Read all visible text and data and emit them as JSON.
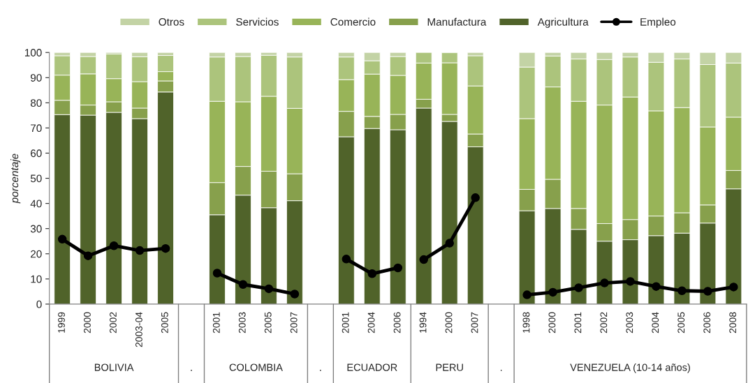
{
  "chart_data": {
    "type": "bar",
    "stacked": true,
    "ylabel": "porcentaje",
    "categories": [
      "1999",
      "2000",
      "2002",
      "2003-04",
      "2005",
      null,
      "2001",
      "2003",
      "2005",
      "2007",
      null,
      "2001",
      "2004",
      "2006",
      "1994",
      "2000",
      "2007",
      null,
      "1998",
      "2000",
      "2001",
      "2002",
      "2003",
      "2004",
      "2005",
      "2006",
      "2008"
    ],
    "series": [
      {
        "name": "Agricultura",
        "color": "#50632a",
        "values": [
          75.3,
          75.1,
          76.2,
          73.7,
          84.3,
          null,
          35.5,
          43.3,
          38.3,
          41.1,
          null,
          66.5,
          69.8,
          69.3,
          77.9,
          72.6,
          62.5,
          null,
          37.1,
          38.0,
          29.7,
          25.0,
          25.6,
          27.2,
          28.2,
          32.2,
          45.8
        ]
      },
      {
        "name": "Manufactura",
        "color": "#87a04c",
        "values": [
          5.7,
          4.0,
          4.2,
          4.2,
          4.4,
          null,
          12.8,
          11.4,
          14.5,
          10.7,
          null,
          10.1,
          4.8,
          6.1,
          3.5,
          2.8,
          5.1,
          null,
          8.5,
          11.6,
          8.3,
          7.0,
          8.0,
          7.8,
          8.1,
          7.2,
          7.3
        ]
      },
      {
        "name": "Comercio",
        "color": "#98b458",
        "values": [
          10.0,
          12.4,
          9.2,
          10.5,
          3.7,
          null,
          32.3,
          25.7,
          29.8,
          26.0,
          null,
          12.6,
          16.8,
          15.5,
          14.4,
          20.5,
          19.1,
          null,
          28.1,
          36.7,
          42.6,
          47.1,
          48.7,
          41.8,
          41.8,
          31.0,
          21.2
        ]
      },
      {
        "name": "Servicios",
        "color": "#acc47c",
        "values": [
          7.7,
          6.9,
          9.8,
          9.9,
          6.4,
          null,
          17.6,
          18.0,
          16.3,
          20.4,
          null,
          9.0,
          5.3,
          7.5,
          4.2,
          4.0,
          12.0,
          null,
          20.5,
          12.3,
          16.8,
          18.1,
          15.9,
          19.3,
          19.3,
          24.8,
          21.5
        ]
      },
      {
        "name": "Otros",
        "color": "#c3d3a5",
        "values": [
          1.3,
          1.6,
          0.6,
          1.7,
          1.2,
          null,
          1.8,
          1.6,
          1.1,
          1.8,
          null,
          1.8,
          3.3,
          1.6,
          null,
          null,
          1.3,
          null,
          5.8,
          1.4,
          2.6,
          2.8,
          1.8,
          3.9,
          2.6,
          4.8,
          4.2
        ]
      },
      {
        "name": "Empleo",
        "type": "line",
        "color": "#000000",
        "marker": "circle",
        "values": [
          25.8,
          19.2,
          23.2,
          21.3,
          22.1,
          null,
          12.3,
          7.8,
          6.1,
          4.0,
          null,
          17.9,
          12.1,
          14.4,
          17.7,
          24.2,
          42.3,
          null,
          3.7,
          4.7,
          6.5,
          8.4,
          9.0,
          7.0,
          5.3,
          5.1,
          6.8
        ]
      }
    ],
    "annotations": [
      "BOLIVIA",
      ".",
      "COLOMBIA",
      ".",
      "ECUADOR",
      "PERU",
      ".",
      "VENEZUELA (10-14 años)"
    ],
    "ylim": [
      0,
      100
    ],
    "yticks": [
      0,
      10,
      20,
      30,
      40,
      50,
      60,
      70,
      80,
      90,
      100
    ],
    "grid": false,
    "legend": "top"
  }
}
